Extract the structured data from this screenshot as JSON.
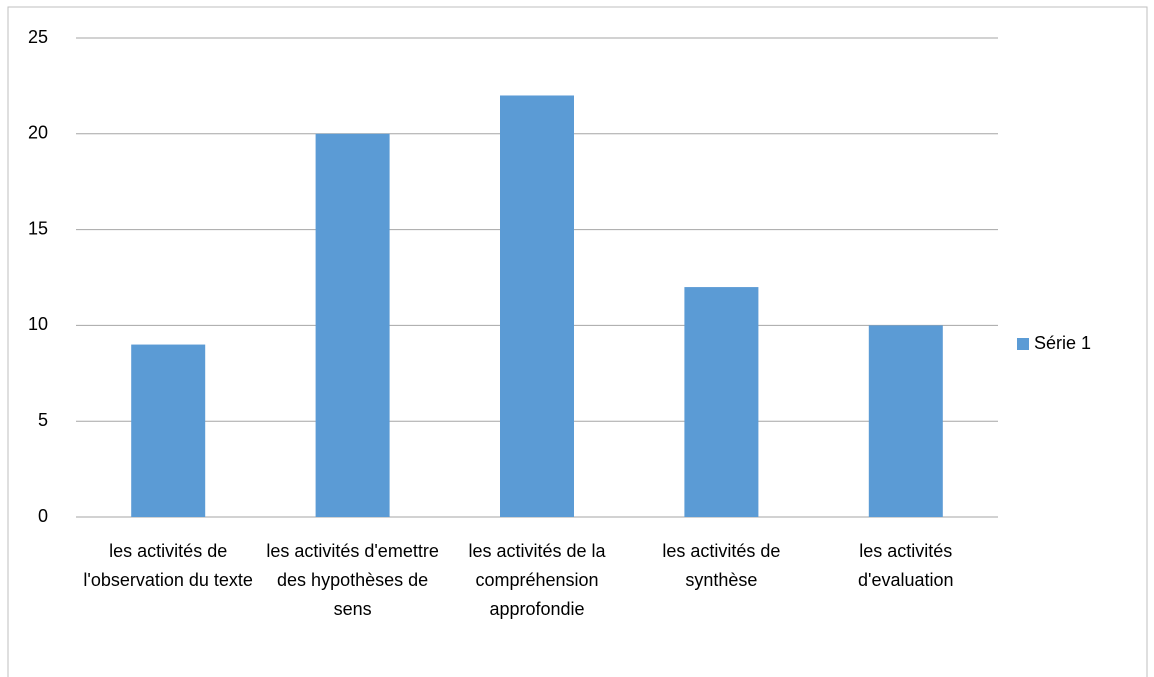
{
  "chart_data": {
    "type": "bar",
    "categories": [
      "les activités de l'observation du texte",
      "les activités d'emettre des hypothèses de sens",
      "les activités de la compréhension approfondie",
      "les activités de synthèse",
      "les activités d'evaluation"
    ],
    "series": [
      {
        "name": "Série 1",
        "color": "#5b9bd5",
        "values": [
          9,
          20,
          22,
          12,
          10
        ]
      }
    ],
    "ylim": [
      0,
      25
    ],
    "yticks": [
      0,
      5,
      10,
      15,
      20,
      25
    ],
    "grid": true,
    "legend": "right"
  }
}
